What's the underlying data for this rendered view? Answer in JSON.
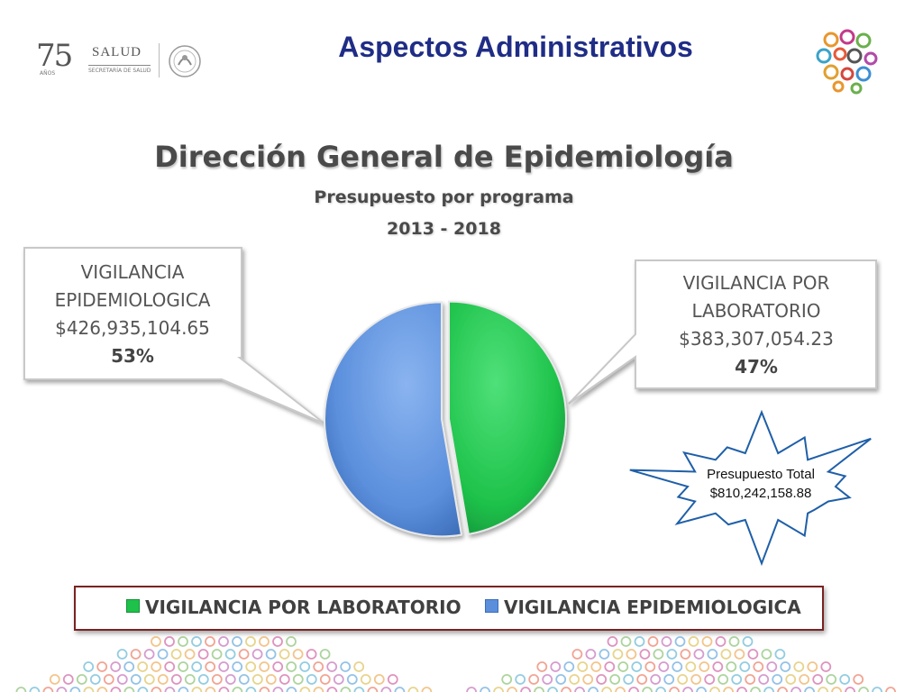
{
  "header": {
    "logo_number": "75",
    "logo_anos": "AÑOS",
    "logo_salud": "SALUD",
    "logo_secretaria": "SECRETARÍA DE SALUD",
    "title": "Aspectos Administrativos"
  },
  "chart_data": {
    "type": "pie",
    "title": "Dirección General de Epidemiología",
    "subtitle": "Presupuesto por programa",
    "period": "2013 - 2018",
    "slices": [
      {
        "name": "VIGILANCIA POR LABORATORIO",
        "value": 383307054.23,
        "value_label": "$383,307,054.23",
        "percent": 47,
        "percent_label": "47%",
        "color": "#1ec24a",
        "callout_lines": [
          "VIGILANCIA POR",
          "LABORATORIO"
        ]
      },
      {
        "name": "VIGILANCIA EPIDEMIOLOGICA",
        "value": 426935104.65,
        "value_label": "$426,935,104.65",
        "percent": 53,
        "percent_label": "53%",
        "color": "#5b8fdc",
        "callout_lines": [
          "VIGILANCIA",
          "EPIDEMIOLOGICA"
        ]
      }
    ],
    "total_label": "Presupuesto Total",
    "total_value": "$810,242,158.88",
    "legend_placement": "bottom"
  },
  "colors": {
    "title_blue": "#1f2d86",
    "legend_border": "#7a2222",
    "star_border": "#1f5fa8"
  }
}
